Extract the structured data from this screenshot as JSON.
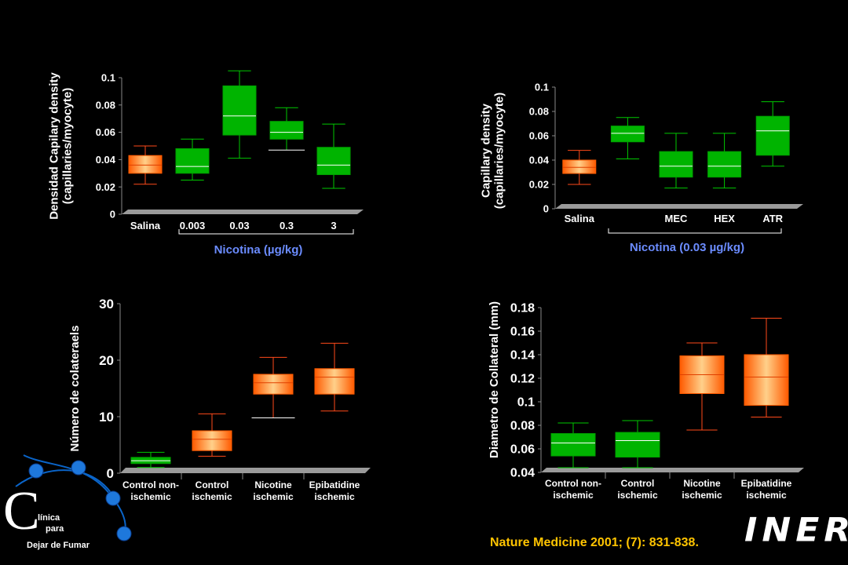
{
  "chart_data": [
    {
      "type": "box",
      "ylabel_lines": [
        "Densidad Capilary density",
        "(capillaries/myocyte)"
      ],
      "yticks": [
        "0",
        "0.02",
        "0.04",
        "0.06",
        "0.08",
        "0.1"
      ],
      "ylim": [
        0,
        0.1
      ],
      "categories": [
        "Salina",
        "0.003",
        "0.03",
        "0.3",
        "3"
      ],
      "group_label": "Nicotina (µg/kg)",
      "group_span": [
        1,
        4
      ],
      "boxes": [
        {
          "min": 0.022,
          "q1": 0.03,
          "median": 0.036,
          "q3": 0.043,
          "max": 0.05,
          "color": "orange"
        },
        {
          "min": 0.025,
          "q1": 0.03,
          "median": 0.035,
          "q3": 0.048,
          "max": 0.055,
          "color": "green"
        },
        {
          "min": 0.041,
          "q1": 0.058,
          "median": 0.072,
          "q3": 0.094,
          "max": 0.105,
          "color": "green"
        },
        {
          "min": 0.047,
          "q1": 0.055,
          "median": 0.06,
          "q3": 0.068,
          "max": 0.078,
          "color": "green"
        },
        {
          "min": 0.019,
          "q1": 0.029,
          "median": 0.036,
          "q3": 0.049,
          "max": 0.066,
          "color": "green"
        }
      ]
    },
    {
      "type": "box",
      "ylabel_lines": [
        "Capillary density",
        "(capillaries/myocyte)"
      ],
      "yticks": [
        "0",
        "0.02",
        "0.04",
        "0.06",
        "0.08",
        "0.1"
      ],
      "ylim": [
        0,
        0.1
      ],
      "categories": [
        "Salina",
        "",
        "MEC",
        "HEX",
        "ATR"
      ],
      "group_label": "Nicotina (0.03 µg/kg)",
      "group_span": [
        1,
        4
      ],
      "boxes": [
        {
          "min": 0.02,
          "q1": 0.029,
          "median": 0.034,
          "q3": 0.04,
          "max": 0.048,
          "color": "orange"
        },
        {
          "min": 0.041,
          "q1": 0.055,
          "median": 0.062,
          "q3": 0.068,
          "max": 0.075,
          "color": "green"
        },
        {
          "min": 0.017,
          "q1": 0.026,
          "median": 0.035,
          "q3": 0.047,
          "max": 0.062,
          "color": "green"
        },
        {
          "min": 0.017,
          "q1": 0.026,
          "median": 0.035,
          "q3": 0.047,
          "max": 0.062,
          "color": "green"
        },
        {
          "min": 0.035,
          "q1": 0.044,
          "median": 0.064,
          "q3": 0.076,
          "max": 0.088,
          "color": "green"
        }
      ]
    },
    {
      "type": "box",
      "ylabel_lines": [
        "Número de colateraels"
      ],
      "yticks": [
        "0",
        "10",
        "20",
        "30"
      ],
      "ylim": [
        0,
        30
      ],
      "categories": [
        [
          "Control non-",
          "ischemic"
        ],
        [
          "Control",
          "ischemic"
        ],
        [
          "Nicotine",
          "ischemic"
        ],
        [
          "Epibatidine",
          "ischemic"
        ]
      ],
      "boxes": [
        {
          "min": 1.0,
          "q1": 1.7,
          "median": 2.2,
          "q3": 2.8,
          "max": 3.7,
          "color": "green"
        },
        {
          "min": 3.0,
          "q1": 4.0,
          "median": 6.0,
          "q3": 7.5,
          "max": 10.5,
          "color": "orange"
        },
        {
          "min": 9.8,
          "q1": 14.0,
          "median": 16.0,
          "q3": 17.5,
          "max": 20.5,
          "color": "orange"
        },
        {
          "min": 11.0,
          "q1": 14.0,
          "median": 17.0,
          "q3": 18.5,
          "max": 23.0,
          "color": "orange"
        }
      ]
    },
    {
      "type": "box",
      "ylabel_lines": [
        "Diametro de Collateral (mm)"
      ],
      "yticks": [
        "0.04",
        "0.06",
        "0.08",
        "0.1",
        "0.12",
        "0.14",
        "0.16",
        "0.18"
      ],
      "ylim": [
        0.04,
        0.18
      ],
      "categories": [
        [
          "Control non-",
          "ischemic"
        ],
        [
          "Control",
          "ischemic"
        ],
        [
          "Nicotine",
          "ischemic"
        ],
        [
          "Epibatidine",
          "ischemic"
        ]
      ],
      "boxes": [
        {
          "min": 0.044,
          "q1": 0.054,
          "median": 0.065,
          "q3": 0.073,
          "max": 0.082,
          "color": "green"
        },
        {
          "min": 0.044,
          "q1": 0.053,
          "median": 0.067,
          "q3": 0.074,
          "max": 0.084,
          "color": "green"
        },
        {
          "min": 0.076,
          "q1": 0.107,
          "median": 0.123,
          "q3": 0.139,
          "max": 0.15,
          "color": "orange"
        },
        {
          "min": 0.087,
          "q1": 0.097,
          "median": 0.121,
          "q3": 0.14,
          "max": 0.171,
          "color": "orange"
        }
      ]
    }
  ],
  "citation": "Nature Medicine 2001; (7): 831-838.",
  "logo": {
    "iner": "INER",
    "clinic_c": "C",
    "clinic_line1": "línica",
    "clinic_line2": "para",
    "clinic_line3": "Dejar de Fumar"
  },
  "colors": {
    "green": "#00b400",
    "orange": "#ff7a1a",
    "group_label": "#6b8cff",
    "citation": "#ffc400"
  }
}
